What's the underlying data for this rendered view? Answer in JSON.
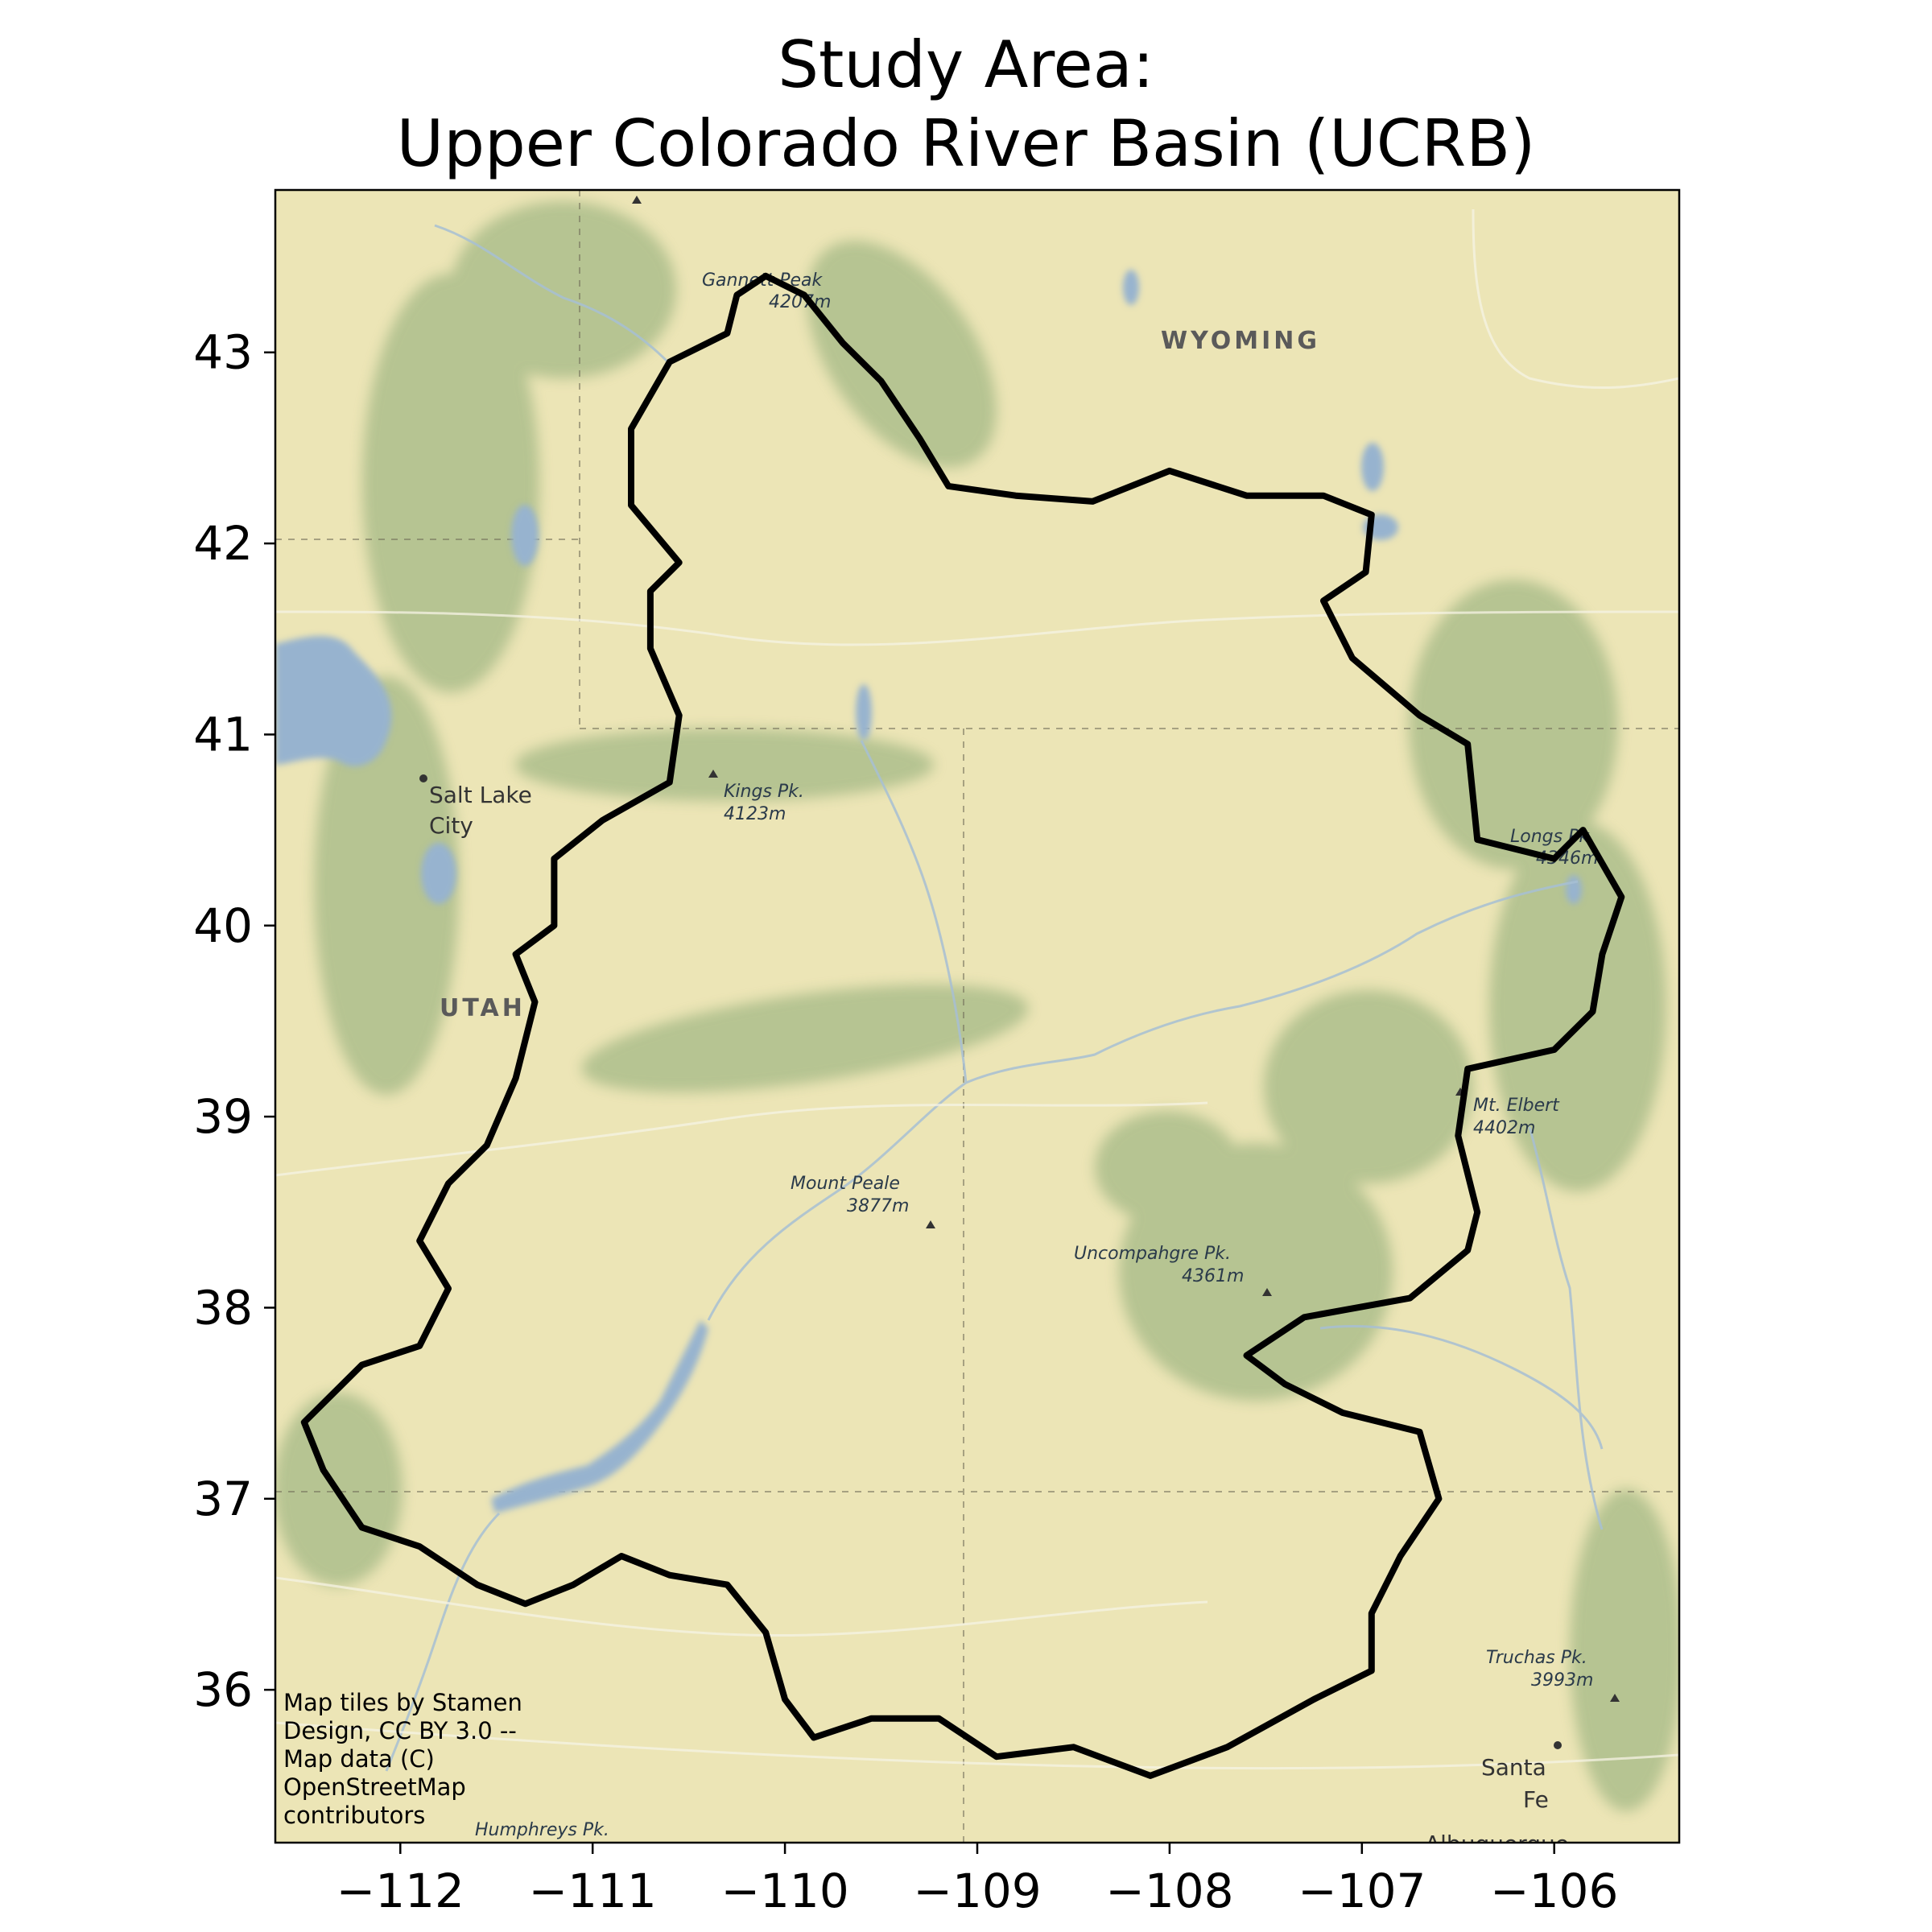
{
  "title": {
    "line1": "Study Area:",
    "line2": "Upper Colorado River Basin (UCRB)"
  },
  "axes": {
    "x_ticks": [
      -112,
      -111,
      -110,
      -109,
      -108,
      -107,
      -106
    ],
    "x_tick_labels": [
      "−112",
      "−111",
      "−110",
      "−109",
      "−108",
      "−107",
      "−106"
    ],
    "y_ticks": [
      36,
      37,
      38,
      39,
      40,
      41,
      42,
      43
    ],
    "y_tick_labels": [
      "36",
      "37",
      "38",
      "39",
      "40",
      "41",
      "42",
      "43"
    ],
    "xlim": [
      -112.65,
      -105.35
    ],
    "ylim": [
      35.2,
      43.85
    ]
  },
  "labels": {
    "wyoming": "WYOMING",
    "utah": "UTAH",
    "salt_lake_1": "Salt Lake",
    "salt_lake_2": "City",
    "gannett_1": "Gannett Peak",
    "gannett_2": "4207m",
    "kings_1": "Kings Pk.",
    "kings_2": "4123m",
    "longs_1": "Longs Pk.",
    "longs_2": "4346m",
    "elbert_1": "Mt. Elbert",
    "elbert_2": "4402m",
    "peale_1": "Mount Peale",
    "peale_2": "3877m",
    "uncomp_1": "Uncompahgre Pk.",
    "uncomp_2": "4361m",
    "truchas_1": "Truchas Pk.",
    "truchas_2": "3993m",
    "santa_fe_1": "Santa",
    "santa_fe_2": "Fe",
    "albuquerque": "Albuquerque",
    "humphreys": "Humphreys Pk."
  },
  "attribution": [
    "Map tiles by Stamen",
    "Design, CC BY 3.0 --",
    "Map data (C)",
    "OpenStreetMap",
    "contributors"
  ],
  "colors": {
    "background": "#ece5b6",
    "water": "#97b3cf",
    "mountain": "#88a872",
    "boundary": "#000000"
  },
  "basin_boundary": [
    [
      -110.1,
      43.4
    ],
    [
      -109.9,
      43.3
    ],
    [
      -109.7,
      43.05
    ],
    [
      -109.5,
      42.85
    ],
    [
      -109.3,
      42.55
    ],
    [
      -109.15,
      42.3
    ],
    [
      -108.8,
      42.25
    ],
    [
      -108.4,
      42.22
    ],
    [
      -108.0,
      42.38
    ],
    [
      -107.6,
      42.25
    ],
    [
      -107.2,
      42.25
    ],
    [
      -106.95,
      42.15
    ],
    [
      -106.98,
      41.85
    ],
    [
      -107.2,
      41.7
    ],
    [
      -107.05,
      41.4
    ],
    [
      -106.7,
      41.1
    ],
    [
      -106.45,
      40.95
    ],
    [
      -106.4,
      40.45
    ],
    [
      -106.0,
      40.35
    ],
    [
      -105.85,
      40.5
    ],
    [
      -105.65,
      40.15
    ],
    [
      -105.75,
      39.85
    ],
    [
      -105.8,
      39.55
    ],
    [
      -106.0,
      39.35
    ],
    [
      -106.45,
      39.25
    ],
    [
      -106.5,
      38.9
    ],
    [
      -106.4,
      38.5
    ],
    [
      -106.45,
      38.3
    ],
    [
      -106.75,
      38.05
    ],
    [
      -107.3,
      37.95
    ],
    [
      -107.6,
      37.75
    ],
    [
      -107.4,
      37.6
    ],
    [
      -107.1,
      37.45
    ],
    [
      -106.7,
      37.35
    ],
    [
      -106.6,
      37.0
    ],
    [
      -106.8,
      36.7
    ],
    [
      -106.95,
      36.4
    ],
    [
      -106.95,
      36.1
    ],
    [
      -107.25,
      35.95
    ],
    [
      -107.7,
      35.7
    ],
    [
      -108.1,
      35.55
    ],
    [
      -108.5,
      35.7
    ],
    [
      -108.9,
      35.65
    ],
    [
      -109.2,
      35.85
    ],
    [
      -109.55,
      35.85
    ],
    [
      -109.85,
      35.75
    ],
    [
      -110.0,
      35.95
    ],
    [
      -110.1,
      36.3
    ],
    [
      -110.3,
      36.55
    ],
    [
      -110.6,
      36.6
    ],
    [
      -110.85,
      36.7
    ],
    [
      -111.1,
      36.55
    ],
    [
      -111.35,
      36.45
    ],
    [
      -111.6,
      36.55
    ],
    [
      -111.9,
      36.75
    ],
    [
      -112.2,
      36.85
    ],
    [
      -112.4,
      37.15
    ],
    [
      -112.5,
      37.4
    ],
    [
      -112.2,
      37.7
    ],
    [
      -111.9,
      37.8
    ],
    [
      -111.75,
      38.1
    ],
    [
      -111.9,
      38.35
    ],
    [
      -111.75,
      38.65
    ],
    [
      -111.55,
      38.85
    ],
    [
      -111.4,
      39.2
    ],
    [
      -111.3,
      39.6
    ],
    [
      -111.4,
      39.85
    ],
    [
      -111.2,
      40.0
    ],
    [
      -111.2,
      40.35
    ],
    [
      -110.95,
      40.55
    ],
    [
      -110.6,
      40.75
    ],
    [
      -110.55,
      41.1
    ],
    [
      -110.7,
      41.45
    ],
    [
      -110.7,
      41.75
    ],
    [
      -110.55,
      41.9
    ],
    [
      -110.8,
      42.2
    ],
    [
      -110.8,
      42.6
    ],
    [
      -110.6,
      42.95
    ],
    [
      -110.3,
      43.1
    ],
    [
      -110.25,
      43.3
    ]
  ]
}
